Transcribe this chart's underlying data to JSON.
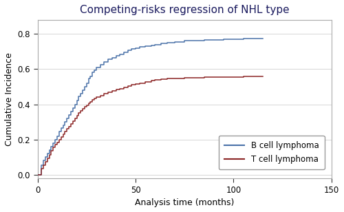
{
  "title": "Competing-risks regression of NHL type",
  "xlabel": "Analysis time (months)",
  "ylabel": "Cumulative Incidence",
  "xlim": [
    0,
    150
  ],
  "ylim": [
    -0.02,
    0.88
  ],
  "yticks": [
    0,
    0.2,
    0.4,
    0.6,
    0.8
  ],
  "xticks": [
    0,
    50,
    100,
    150
  ],
  "b_color": "#4a72a8",
  "t_color": "#8b2525",
  "legend_labels": [
    "B cell lymphoma",
    "T cell lymphoma"
  ],
  "background_color": "#ffffff",
  "grid_color": "#d0d0d0",
  "b_cell_x": [
    0,
    2,
    3,
    4,
    5,
    6,
    7,
    8,
    9,
    10,
    11,
    12,
    13,
    14,
    15,
    16,
    17,
    18,
    19,
    20,
    21,
    22,
    23,
    24,
    25,
    26,
    27,
    28,
    29,
    30,
    32,
    34,
    36,
    38,
    40,
    42,
    44,
    46,
    48,
    50,
    52,
    55,
    58,
    60,
    63,
    66,
    70,
    75,
    80,
    85,
    90,
    95,
    100,
    105,
    110,
    115
  ],
  "b_cell_y": [
    0,
    0.055,
    0.08,
    0.1,
    0.12,
    0.14,
    0.16,
    0.18,
    0.2,
    0.22,
    0.245,
    0.265,
    0.28,
    0.3,
    0.32,
    0.34,
    0.36,
    0.38,
    0.4,
    0.42,
    0.445,
    0.46,
    0.48,
    0.5,
    0.52,
    0.545,
    0.56,
    0.58,
    0.595,
    0.61,
    0.625,
    0.64,
    0.655,
    0.665,
    0.675,
    0.685,
    0.695,
    0.705,
    0.715,
    0.72,
    0.725,
    0.73,
    0.735,
    0.74,
    0.745,
    0.75,
    0.755,
    0.76,
    0.762,
    0.764,
    0.766,
    0.768,
    0.77,
    0.772,
    0.774,
    0.775
  ],
  "t_cell_x": [
    0,
    2,
    3,
    4,
    5,
    6,
    7,
    8,
    9,
    10,
    11,
    12,
    13,
    14,
    15,
    16,
    17,
    18,
    19,
    20,
    21,
    22,
    23,
    24,
    25,
    26,
    27,
    28,
    29,
    30,
    32,
    34,
    36,
    38,
    40,
    42,
    44,
    46,
    48,
    50,
    52,
    55,
    58,
    60,
    63,
    66,
    70,
    75,
    80,
    85,
    90,
    95,
    100,
    105,
    110,
    115
  ],
  "t_cell_y": [
    0,
    0.035,
    0.055,
    0.075,
    0.095,
    0.115,
    0.135,
    0.155,
    0.17,
    0.185,
    0.2,
    0.215,
    0.23,
    0.245,
    0.26,
    0.275,
    0.29,
    0.305,
    0.32,
    0.335,
    0.35,
    0.365,
    0.375,
    0.385,
    0.395,
    0.405,
    0.415,
    0.425,
    0.435,
    0.44,
    0.45,
    0.46,
    0.468,
    0.476,
    0.483,
    0.49,
    0.497,
    0.503,
    0.51,
    0.515,
    0.52,
    0.527,
    0.534,
    0.538,
    0.542,
    0.546,
    0.548,
    0.55,
    0.552,
    0.553,
    0.554,
    0.555,
    0.556,
    0.557,
    0.558,
    0.558
  ]
}
